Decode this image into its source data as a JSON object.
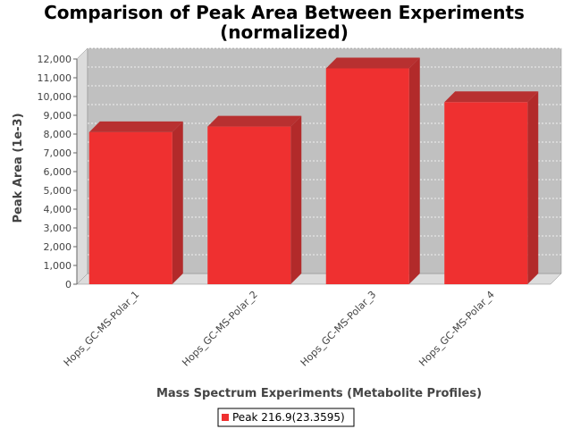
{
  "chart_data": {
    "type": "bar",
    "title_lines": [
      "Comparison of Peak Area Between Experiments",
      "(normalized)"
    ],
    "xlabel": "Mass Spectrum Experiments (Metabolite Profiles)",
    "ylabel": "Peak Area (1e-3)",
    "categories": [
      "Hops_GC-MS-Polar_1",
      "Hops_GC-MS-Polar_2",
      "Hops_GC-MS-Polar_3",
      "Hops_GC-MS-Polar_4"
    ],
    "series": [
      {
        "name": "Peak 216.9(23.3595)",
        "values": [
          8100,
          8400,
          11500,
          9700
        ]
      }
    ],
    "ylim": [
      0,
      12000
    ],
    "yticks": [
      0,
      1000,
      2000,
      3000,
      4000,
      5000,
      6000,
      7000,
      8000,
      9000,
      10000,
      11000,
      12000
    ],
    "ytick_labels": [
      "0",
      "1,000",
      "2,000",
      "3,000",
      "4,000",
      "5,000",
      "6,000",
      "7,000",
      "8,000",
      "9,000",
      "10,000",
      "11,000",
      "12,000"
    ],
    "grid": true,
    "legend_position": "bottom",
    "colors": {
      "bar": "#ef3030",
      "bar_top": "#b83030",
      "bar_side": "#b22a2a",
      "plot_bg": "#c0c0c0",
      "plot_side": "#dcdcdc"
    }
  }
}
